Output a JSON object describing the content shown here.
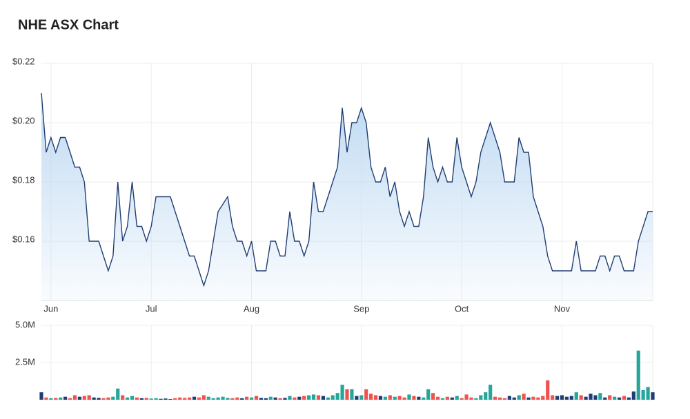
{
  "chart_data": [
    {
      "type": "line",
      "title": "NHE ASX Chart",
      "categories": [
        null,
        null,
        "Jun",
        null,
        null,
        null,
        null,
        null,
        null,
        null,
        null,
        null,
        null,
        null,
        null,
        null,
        null,
        null,
        null,
        null,
        null,
        null,
        null,
        "Jul",
        null,
        null,
        null,
        null,
        null,
        null,
        null,
        null,
        null,
        null,
        null,
        null,
        null,
        null,
        null,
        null,
        null,
        null,
        null,
        null,
        "Aug",
        null,
        null,
        null,
        null,
        null,
        null,
        null,
        null,
        null,
        null,
        null,
        null,
        null,
        null,
        null,
        null,
        null,
        null,
        null,
        null,
        null,
        null,
        "Sep",
        null,
        null,
        null,
        null,
        null,
        null,
        null,
        null,
        null,
        null,
        null,
        null,
        null,
        null,
        null,
        null,
        null,
        null,
        null,
        null,
        "Oct",
        null,
        null,
        null,
        null,
        null,
        null,
        null,
        null,
        null,
        null,
        null,
        null,
        null,
        null,
        null,
        null,
        null,
        null,
        null,
        null,
        "Nov",
        null,
        null,
        null,
        null,
        null,
        null,
        null,
        null,
        null,
        null,
        null,
        null,
        null,
        null,
        null,
        null,
        null,
        null,
        null
      ],
      "series": [
        {
          "color": "#1f3e73",
          "fill": "#bcd8f2",
          "values": [
            0.21,
            0.19,
            0.195,
            0.19,
            0.195,
            0.195,
            0.19,
            0.185,
            0.185,
            0.18,
            0.16,
            0.16,
            0.16,
            0.155,
            0.15,
            0.155,
            0.18,
            0.16,
            0.165,
            0.18,
            0.165,
            0.165,
            0.16,
            0.165,
            0.175,
            0.175,
            0.175,
            0.175,
            0.17,
            0.165,
            0.16,
            0.155,
            0.155,
            0.15,
            0.145,
            0.15,
            0.16,
            0.17,
            0.1725,
            0.175,
            0.165,
            0.16,
            0.16,
            0.155,
            0.16,
            0.15,
            0.15,
            0.15,
            0.16,
            0.16,
            0.155,
            0.155,
            0.17,
            0.16,
            0.16,
            0.155,
            0.16,
            0.18,
            0.17,
            0.17,
            0.175,
            0.18,
            0.185,
            0.205,
            0.19,
            0.2,
            0.2,
            0.205,
            0.2,
            0.185,
            0.18,
            0.18,
            0.185,
            0.175,
            0.18,
            0.17,
            0.165,
            0.17,
            0.165,
            0.165,
            0.175,
            0.195,
            0.185,
            0.18,
            0.185,
            0.18,
            0.18,
            0.195,
            0.185,
            0.18,
            0.175,
            0.18,
            0.19,
            0.195,
            0.2,
            0.195,
            0.19,
            0.18,
            0.18,
            0.18,
            0.195,
            0.19,
            0.19,
            0.175,
            0.17,
            0.165,
            0.155,
            0.15,
            0.15,
            0.15,
            0.15,
            0.15,
            0.16,
            0.15,
            0.15,
            0.15,
            0.15,
            0.155,
            0.155,
            0.15,
            0.155,
            0.155,
            0.15,
            0.15,
            0.15,
            0.16,
            0.165,
            0.17,
            0.17
          ]
        }
      ],
      "ylim": [
        0.14,
        0.22
      ],
      "yticks": [
        {
          "value": 0.16,
          "label": "$0.16"
        },
        {
          "value": 0.18,
          "label": "$0.18"
        },
        {
          "value": 0.2,
          "label": "$0.20"
        },
        {
          "value": 0.22,
          "label": "$0.22"
        }
      ],
      "grid": true
    },
    {
      "type": "bar",
      "values": [
        500000,
        150000,
        100000,
        120000,
        150000,
        200000,
        100000,
        300000,
        200000,
        250000,
        300000,
        150000,
        120000,
        100000,
        150000,
        200000,
        750000,
        300000,
        150000,
        250000,
        150000,
        100000,
        120000,
        80000,
        100000,
        60000,
        80000,
        50000,
        100000,
        150000,
        120000,
        150000,
        200000,
        150000,
        300000,
        200000,
        100000,
        150000,
        200000,
        120000,
        100000,
        150000,
        100000,
        200000,
        150000,
        250000,
        120000,
        100000,
        200000,
        150000,
        100000,
        120000,
        250000,
        150000,
        200000,
        250000,
        300000,
        350000,
        300000,
        250000,
        150000,
        300000,
        450000,
        1000000,
        700000,
        700000,
        250000,
        300000,
        700000,
        400000,
        300000,
        250000,
        200000,
        300000,
        200000,
        250000,
        150000,
        350000,
        250000,
        200000,
        150000,
        700000,
        450000,
        200000,
        100000,
        200000,
        150000,
        250000,
        100000,
        350000,
        150000,
        100000,
        300000,
        500000,
        1000000,
        200000,
        150000,
        100000,
        250000,
        150000,
        300000,
        400000,
        150000,
        200000,
        150000,
        250000,
        1300000,
        300000,
        250000,
        300000,
        200000,
        250000,
        500000,
        300000,
        200000,
        400000,
        300000,
        450000,
        150000,
        300000,
        200000,
        150000,
        250000,
        150000,
        550000,
        3300000,
        650000,
        850000,
        500000
      ],
      "up_color": "#26a69a",
      "down_color": "#ef5350",
      "flat_color": "#1f3e73",
      "ylim": [
        0,
        5000000
      ],
      "yticks": [
        {
          "value": 2500000,
          "label": "2.5M"
        },
        {
          "value": 5000000,
          "label": "5.0M"
        }
      ],
      "grid": true
    }
  ]
}
